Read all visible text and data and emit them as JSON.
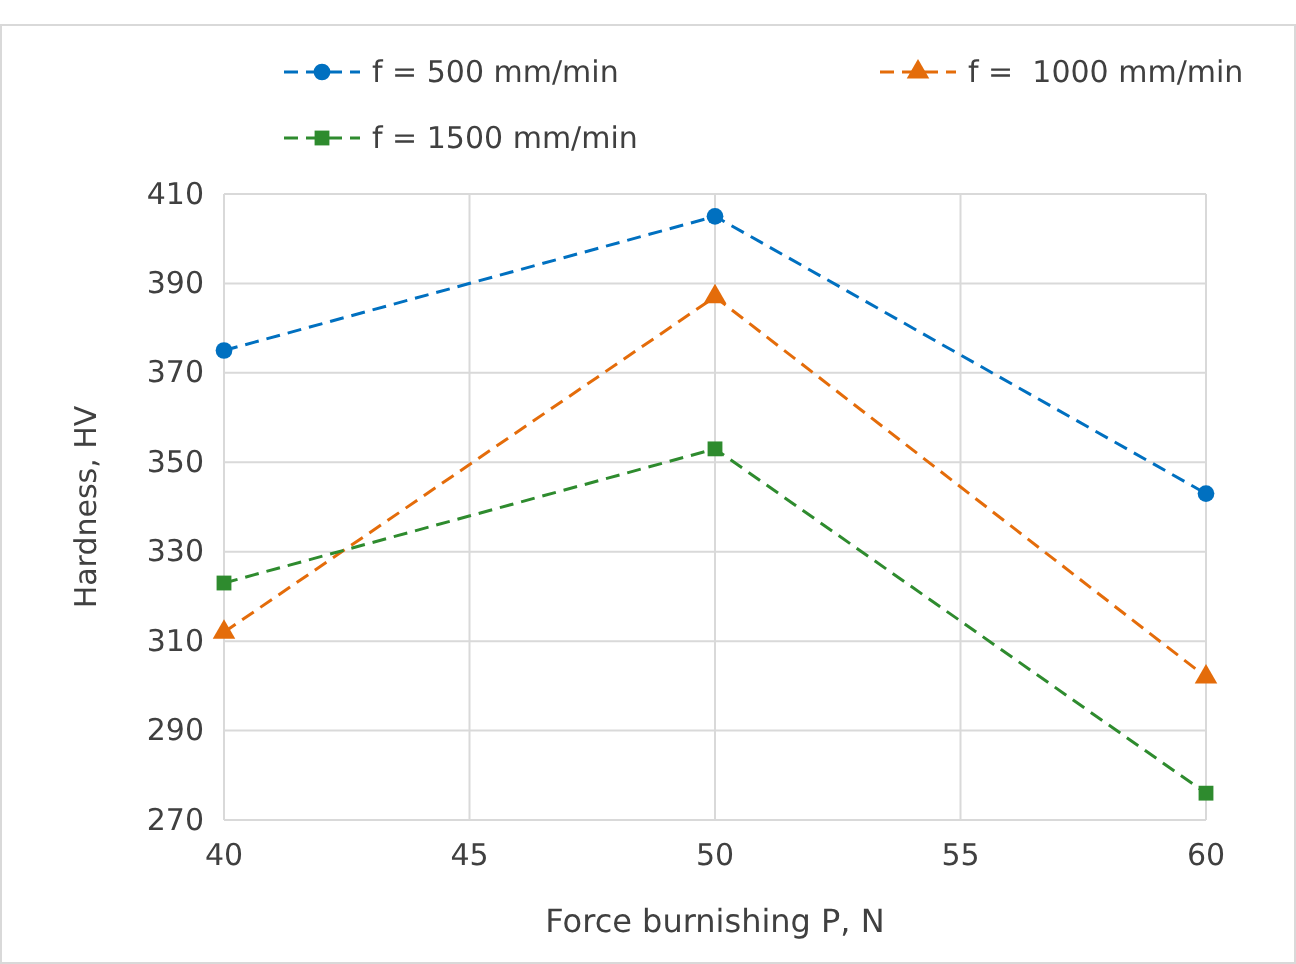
{
  "chart_data": {
    "type": "line",
    "xlabel": "Force burnishing P, N",
    "ylabel": "Hardness, HV",
    "x": [
      40,
      50,
      60
    ],
    "xlim": [
      40,
      60
    ],
    "xticks": [
      40,
      45,
      50,
      55,
      60
    ],
    "ylim": [
      270,
      410
    ],
    "yticks": [
      270,
      290,
      310,
      330,
      350,
      370,
      390,
      410
    ],
    "grid": true,
    "legend": "top",
    "line_style": "dashed",
    "series": [
      {
        "name": "f = 500 mm/min",
        "color": "#0070c0",
        "marker": "circle",
        "values": [
          375,
          405,
          343
        ]
      },
      {
        "name": "f =  1000 mm/min",
        "color": "#e46c0a",
        "marker": "triangle",
        "values": [
          312,
          387,
          302
        ]
      },
      {
        "name": "f = 1500 mm/min",
        "color": "#2e8b2e",
        "marker": "square",
        "values": [
          323,
          353,
          276
        ]
      }
    ]
  }
}
